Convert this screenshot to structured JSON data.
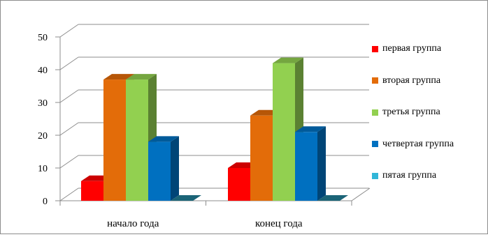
{
  "chart_data": {
    "type": "bar",
    "categories": [
      "начало года",
      "конец года"
    ],
    "series": [
      {
        "name": "первая группа",
        "values": [
          6,
          10
        ],
        "color": "#ff0000"
      },
      {
        "name": "вторая группа",
        "values": [
          37,
          26
        ],
        "color": "#e36c09"
      },
      {
        "name": "третья группа",
        "values": [
          37,
          42
        ],
        "color": "#92d050"
      },
      {
        "name": "четвертая группа",
        "values": [
          18,
          21
        ],
        "color": "#0070c0"
      },
      {
        "name": "пятая группа",
        "values": [
          0,
          0
        ],
        "color": "#31b6d8"
      }
    ],
    "yticks": [
      "0",
      "10",
      "20",
      "30",
      "40",
      "50"
    ],
    "ylim": [
      0,
      50
    ],
    "grid": true,
    "legend_position": "right",
    "style": "3d-clustered-column"
  }
}
